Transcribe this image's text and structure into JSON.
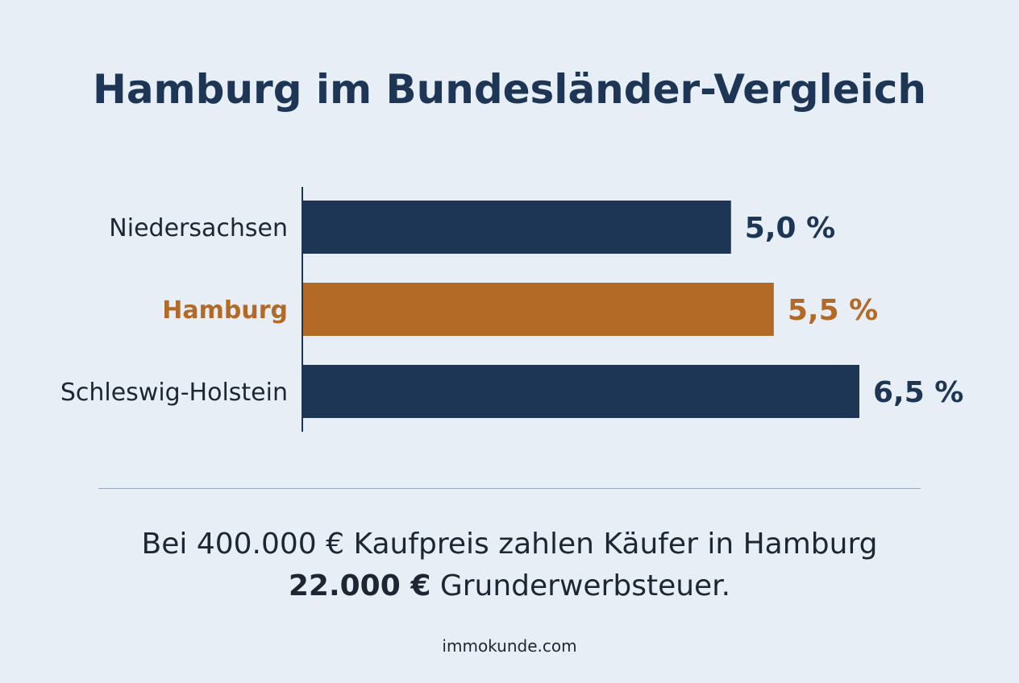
{
  "title": "Hamburg im Bundesländer-Vergleich",
  "chart_data": {
    "type": "bar",
    "orientation": "horizontal",
    "categories": [
      "Niedersachsen",
      "Hamburg",
      "Schleswig-Holstein"
    ],
    "values": [
      5.0,
      5.5,
      6.5
    ],
    "value_labels": [
      "5,0 %",
      "5,5 %",
      "6,5 %"
    ],
    "highlight": "Hamburg",
    "xlim": [
      0,
      6.5
    ],
    "grid": false,
    "colors": {
      "default": "#1e3655",
      "highlight": "#b36a27"
    }
  },
  "summary": {
    "line1": "Bei 400.000 € Kaufpreis zahlen Käufer in Hamburg",
    "amount": "22.000 €",
    "line2_rest": " Grunderwerbsteuer."
  },
  "source": "immokunde.com"
}
